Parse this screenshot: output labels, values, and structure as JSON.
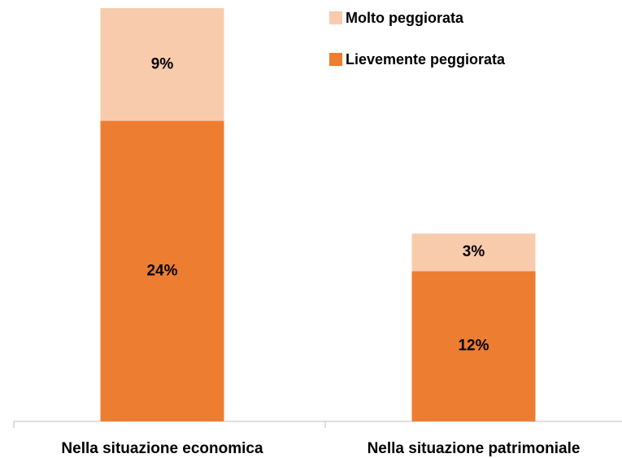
{
  "chart_data": {
    "type": "stacked_bar",
    "categories": [
      "Nella situazione economica",
      "Nella situazione patrimoniale"
    ],
    "series": [
      {
        "name": "Lievemente peggiorata",
        "color": "#ED7D31",
        "values": [
          24,
          12
        ],
        "value_labels": [
          "24%",
          "12%"
        ]
      },
      {
        "name": "Molto peggiorata",
        "color": "#F8CBAD",
        "values": [
          9,
          3
        ],
        "value_labels": [
          "9%",
          "3%"
        ]
      }
    ]
  }
}
